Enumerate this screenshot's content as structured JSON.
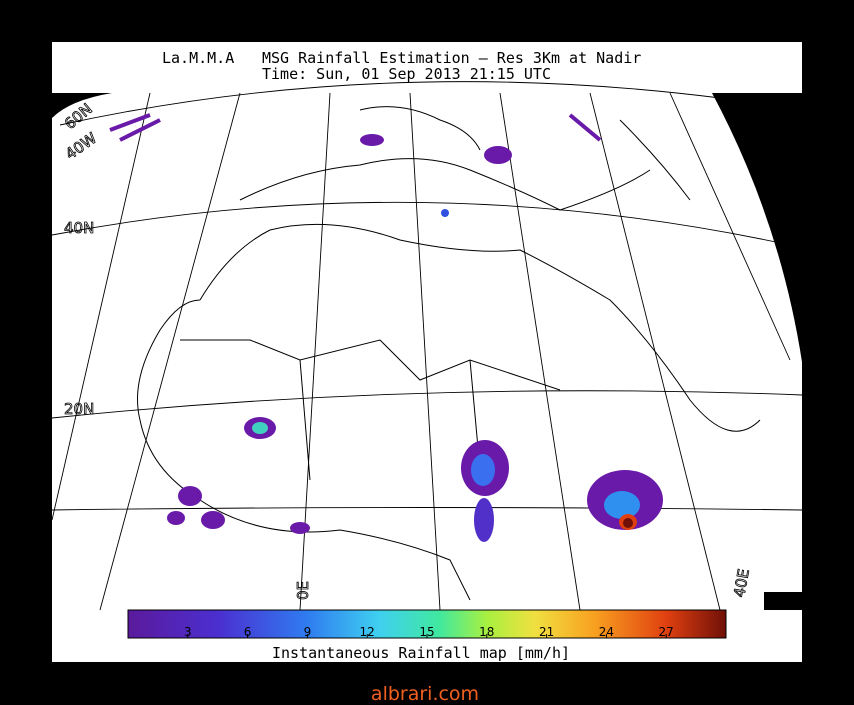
{
  "header": {
    "agency": "La.M.M.A",
    "title": "MSG Rainfall Estimation — Res 3Km at Nadir",
    "time": "Time: Sun, 01 Sep 2013 21:15 UTC"
  },
  "map": {
    "grid_labels": [
      "60N",
      "40W",
      "40N",
      "20N",
      "0E",
      "40E"
    ]
  },
  "colorbar": {
    "range": [
      0,
      30
    ],
    "ticks": [
      3,
      6,
      9,
      12,
      15,
      18,
      21,
      24,
      27
    ],
    "label": "Instantaneous Rainfall map [mm/h]"
  },
  "footer": "albrari.com"
}
